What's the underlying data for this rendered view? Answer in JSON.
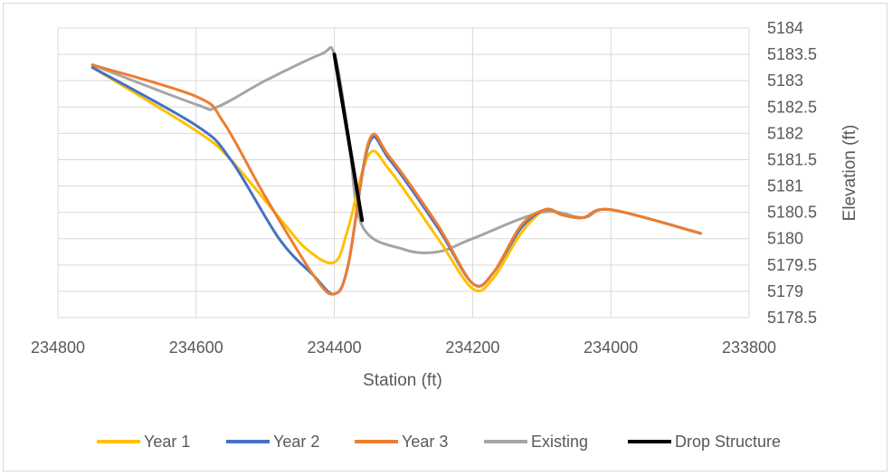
{
  "chart_data": {
    "type": "line",
    "title": "",
    "xlabel": "Station (ft)",
    "ylabel": "Elevation (ft)",
    "x_reversed": true,
    "xlim": [
      233800,
      234800
    ],
    "ylim": [
      5178.5,
      5184
    ],
    "x_ticks": [
      234800,
      234600,
      234400,
      234200,
      234000,
      233800
    ],
    "y_ticks": [
      5178.5,
      5179,
      5179.5,
      5180,
      5180.5,
      5181,
      5181.5,
      5182,
      5182.5,
      5183,
      5183.5,
      5184
    ],
    "y_axis_side": "right",
    "grid": true,
    "legend_position": "bottom",
    "series": [
      {
        "name": "Year 1",
        "color": "#FFC000",
        "points": [
          [
            234750,
            5183.25
          ],
          [
            234600,
            5182.05
          ],
          [
            234550,
            5181.5
          ],
          [
            234480,
            5180.4
          ],
          [
            234440,
            5179.8
          ],
          [
            234400,
            5179.55
          ],
          [
            234380,
            5180.2
          ],
          [
            234350,
            5181.6
          ],
          [
            234320,
            5181.3
          ],
          [
            234250,
            5180.0
          ],
          [
            234200,
            5179.05
          ],
          [
            234170,
            5179.25
          ],
          [
            234130,
            5180.1
          ],
          [
            234095,
            5180.55
          ],
          [
            234070,
            5180.45
          ],
          [
            234040,
            5180.4
          ],
          [
            234000,
            5180.55
          ],
          [
            233870,
            5180.1
          ]
        ]
      },
      {
        "name": "Year 2",
        "color": "#4472C4",
        "points": [
          [
            234750,
            5183.25
          ],
          [
            234600,
            5182.15
          ],
          [
            234550,
            5181.5
          ],
          [
            234480,
            5180.0
          ],
          [
            234430,
            5179.3
          ],
          [
            234400,
            5178.95
          ],
          [
            234380,
            5179.5
          ],
          [
            234350,
            5181.8
          ],
          [
            234320,
            5181.5
          ],
          [
            234250,
            5180.2
          ],
          [
            234200,
            5179.15
          ],
          [
            234170,
            5179.35
          ],
          [
            234130,
            5180.2
          ],
          [
            234095,
            5180.55
          ],
          [
            234070,
            5180.45
          ],
          [
            234040,
            5180.4
          ],
          [
            234000,
            5180.55
          ],
          [
            233870,
            5180.1
          ]
        ]
      },
      {
        "name": "Year 3",
        "color": "#ED7D31",
        "points": [
          [
            234750,
            5183.3
          ],
          [
            234600,
            5182.7
          ],
          [
            234560,
            5182.2
          ],
          [
            234500,
            5180.8
          ],
          [
            234430,
            5179.3
          ],
          [
            234400,
            5178.95
          ],
          [
            234380,
            5179.5
          ],
          [
            234350,
            5181.85
          ],
          [
            234320,
            5181.55
          ],
          [
            234250,
            5180.25
          ],
          [
            234200,
            5179.15
          ],
          [
            234170,
            5179.35
          ],
          [
            234130,
            5180.25
          ],
          [
            234095,
            5180.55
          ],
          [
            234070,
            5180.45
          ],
          [
            234040,
            5180.4
          ],
          [
            234000,
            5180.55
          ],
          [
            233870,
            5180.1
          ]
        ]
      },
      {
        "name": "Existing",
        "color": "#A5A5A5",
        "points": [
          [
            234750,
            5183.3
          ],
          [
            234600,
            5182.55
          ],
          [
            234570,
            5182.5
          ],
          [
            234500,
            5183.0
          ],
          [
            234420,
            5183.5
          ],
          [
            234400,
            5183.5
          ],
          [
            234380,
            5182.0
          ],
          [
            234360,
            5180.25
          ],
          [
            234300,
            5179.8
          ],
          [
            234250,
            5179.75
          ],
          [
            234200,
            5180.0
          ],
          [
            234100,
            5180.5
          ],
          [
            234040,
            5180.4
          ],
          [
            234000,
            5180.55
          ],
          [
            233870,
            5180.1
          ]
        ]
      },
      {
        "name": "Drop Structure",
        "color": "#000000",
        "points": [
          [
            234400,
            5183.5
          ],
          [
            234360,
            5180.35
          ]
        ]
      }
    ]
  }
}
